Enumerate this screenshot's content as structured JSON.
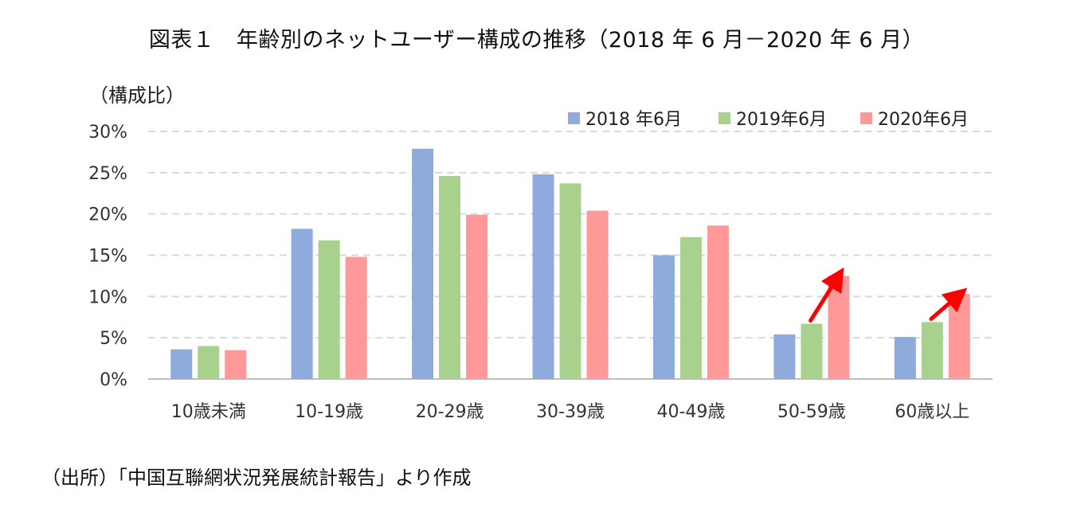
{
  "title": "図表１　年齢別のネットユーザー構成の推移（2018 年 6 月－2020 年 6 月）",
  "source": "（出所）「中国互聯網状況発展統計報告」より作成",
  "chart_data": {
    "type": "bar",
    "ylabel": "（構成比）",
    "ylim": [
      0,
      30
    ],
    "yticks": [
      "0%",
      "5%",
      "10%",
      "15%",
      "20%",
      "25%",
      "30%"
    ],
    "grid": true,
    "legend_position": "top-right",
    "categories": [
      "10歳未満",
      "10-19歳",
      "20-29歳",
      "30-39歳",
      "40-49歳",
      "50-59歳",
      "60歳以上"
    ],
    "series": [
      {
        "name": "2018 年6月",
        "color": "#8faadc",
        "values": [
          3.6,
          18.2,
          27.9,
          24.8,
          15.0,
          5.4,
          5.1
        ]
      },
      {
        "name": "2019年6月",
        "color": "#a9d18e",
        "values": [
          4.0,
          16.8,
          24.6,
          23.7,
          17.2,
          6.7,
          6.9
        ]
      },
      {
        "name": "2020年6月",
        "color": "#ff9999",
        "values": [
          3.5,
          14.8,
          19.9,
          20.4,
          18.6,
          12.5,
          10.3
        ]
      }
    ],
    "arrow_color": "#ff0000",
    "arrows": [
      {
        "category": "50-59歳",
        "from_series": "2019年6月",
        "to_series": "2020年6月"
      },
      {
        "category": "60歳以上",
        "from_series": "2019年6月",
        "to_series": "2020年6月"
      }
    ]
  }
}
